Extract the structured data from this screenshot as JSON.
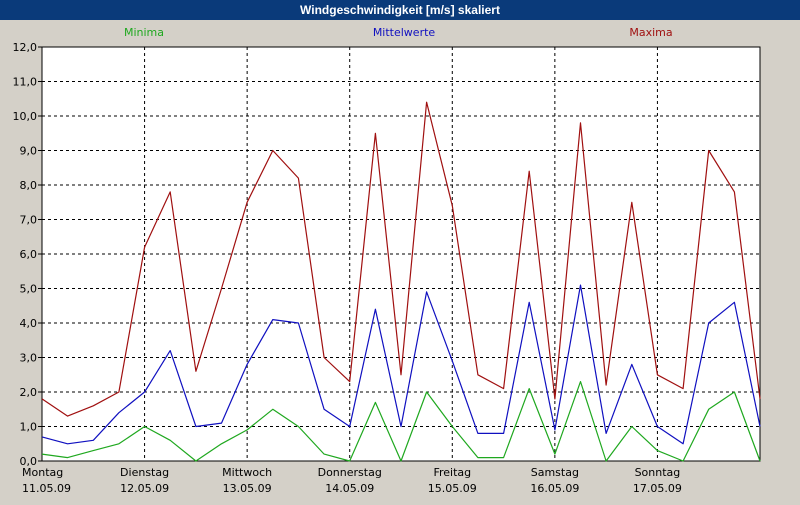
{
  "window": {
    "title": "Windgeschwindigkeit [m/s] skaliert"
  },
  "legend": {
    "minima": "Minima",
    "mittelwerte": "Mittelwerte",
    "maxima": "Maxima"
  },
  "colors": {
    "minima": "#1fa81f",
    "mittelwerte": "#1010c0",
    "maxima": "#a01010",
    "plot_bg": "#ffffff",
    "grid": "#000000"
  },
  "chart_data": {
    "type": "line",
    "title": "Windgeschwindigkeit [m/s] skaliert",
    "xlabel": "",
    "ylabel": "",
    "ylim": [
      0,
      12
    ],
    "yticks": [
      "0,0",
      "1,0",
      "2,0",
      "3,0",
      "4,0",
      "5,0",
      "6,0",
      "7,0",
      "8,0",
      "9,0",
      "10,0",
      "11,0",
      "12,0"
    ],
    "days": [
      {
        "name": "Montag",
        "date": "11.05.09"
      },
      {
        "name": "Dienstag",
        "date": "12.05.09"
      },
      {
        "name": "Mittwoch",
        "date": "13.05.09"
      },
      {
        "name": "Donnerstag",
        "date": "14.05.09"
      },
      {
        "name": "Freitag",
        "date": "15.05.09"
      },
      {
        "name": "Samstag",
        "date": "16.05.09"
      },
      {
        "name": "Sonntag",
        "date": "17.05.09"
      }
    ],
    "grid": true,
    "x_hours": [
      0,
      6,
      12,
      18,
      24,
      30,
      36,
      42,
      48,
      54,
      60,
      66,
      72,
      78,
      84,
      90,
      96,
      102,
      108,
      114,
      120,
      126,
      132,
      138,
      144,
      150,
      156,
      162,
      168
    ],
    "series": [
      {
        "name": "Maxima",
        "values": [
          1.8,
          1.3,
          1.6,
          2.0,
          6.2,
          7.8,
          2.6,
          5.0,
          7.5,
          9.0,
          8.2,
          3.0,
          2.3,
          9.5,
          2.5,
          10.4,
          7.4,
          2.5,
          2.1,
          8.4,
          1.8,
          9.8,
          2.2,
          7.5,
          2.5,
          2.1,
          9.0,
          7.8,
          1.8
        ]
      },
      {
        "name": "Mittelwerte",
        "values": [
          0.7,
          0.5,
          0.6,
          1.4,
          2.0,
          3.2,
          1.0,
          1.1,
          2.8,
          4.1,
          4.0,
          1.5,
          1.0,
          4.4,
          1.0,
          4.9,
          2.9,
          0.8,
          0.8,
          4.6,
          0.9,
          5.1,
          0.8,
          2.8,
          1.0,
          0.5,
          4.0,
          4.6,
          1.0
        ]
      },
      {
        "name": "Minima",
        "values": [
          0.2,
          0.1,
          0.3,
          0.5,
          1.0,
          0.6,
          0.0,
          0.5,
          0.9,
          1.5,
          1.0,
          0.2,
          0.0,
          1.7,
          0.0,
          2.0,
          1.0,
          0.1,
          0.1,
          2.1,
          0.2,
          2.3,
          0.0,
          1.0,
          0.3,
          0.0,
          1.5,
          2.0,
          0.0
        ]
      }
    ]
  }
}
